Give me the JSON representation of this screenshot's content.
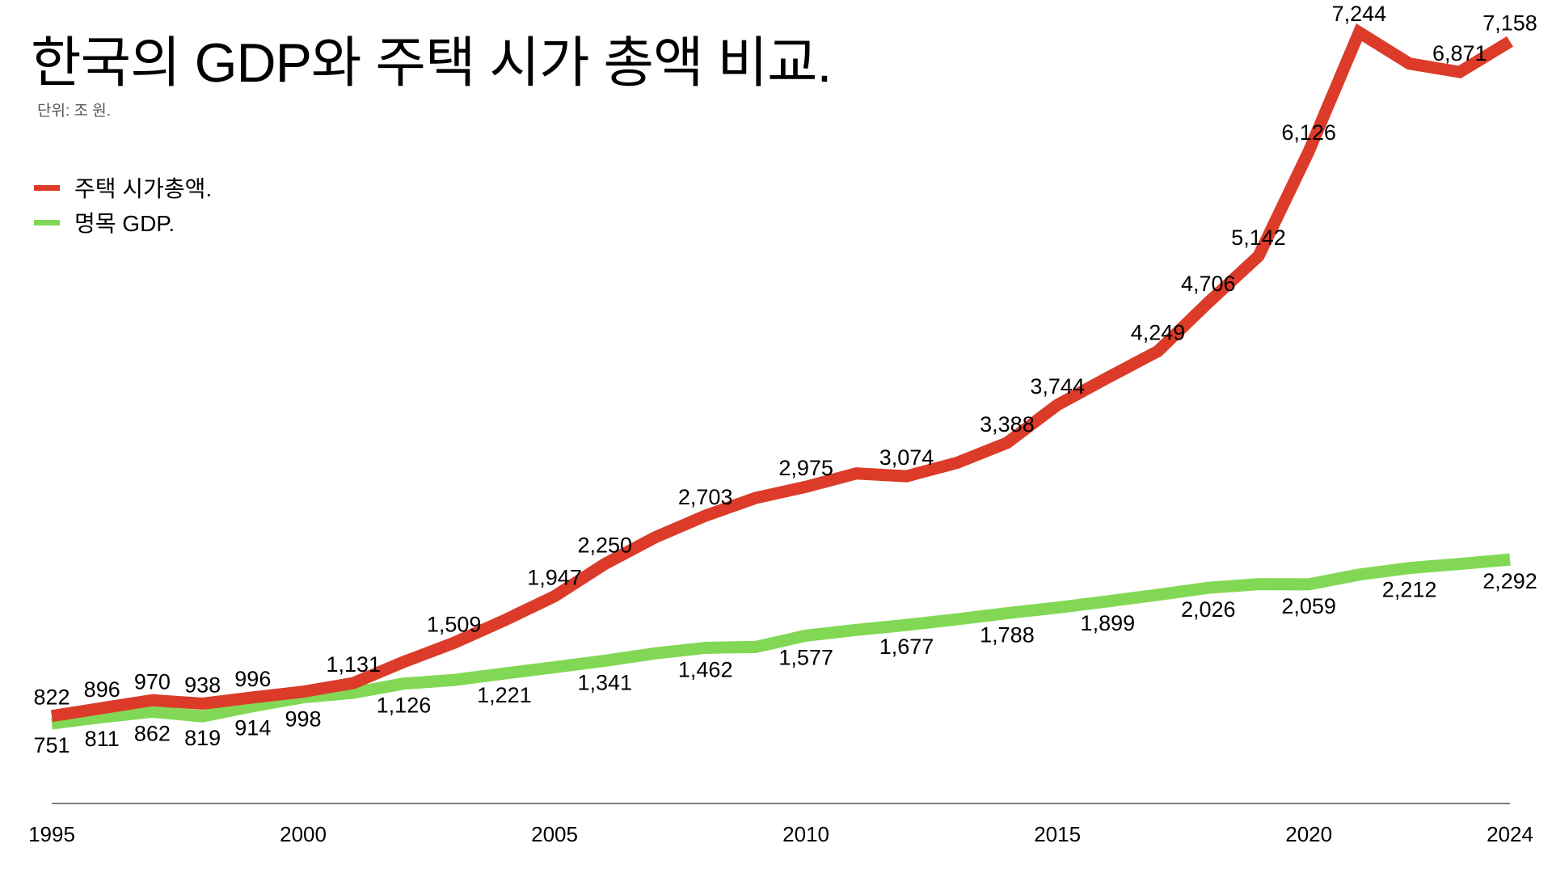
{
  "chart_data": {
    "type": "line",
    "title": "한국의 GDP와 주택 시가 총액 비교.",
    "subtitle": "단위: 조 원.",
    "xlabel": "",
    "ylabel": "",
    "x": [
      1995,
      1996,
      1997,
      1998,
      1999,
      2000,
      2001,
      2002,
      2003,
      2004,
      2005,
      2006,
      2007,
      2008,
      2009,
      2010,
      2011,
      2012,
      2013,
      2014,
      2015,
      2016,
      2017,
      2018,
      2019,
      2020,
      2021,
      2022,
      2023,
      2024
    ],
    "xticks": [
      "1995",
      "2000",
      "2005",
      "2010",
      "2015",
      "2020",
      "2024"
    ],
    "ylim": [
      0,
      7500
    ],
    "grid": false,
    "legend_position": "top-left",
    "series": [
      {
        "name": "주택 시가총액.",
        "color": "#db3b28",
        "values": [
          822,
          896,
          970,
          938,
          996,
          1050,
          1131,
          1330,
          1509,
          1720,
          1947,
          2250,
          2500,
          2703,
          2870,
          2975,
          3100,
          3074,
          3200,
          3388,
          3744,
          4000,
          4249,
          4706,
          5142,
          6126,
          7244,
          6950,
          6871,
          7158
        ],
        "labels": [
          "822",
          "896",
          "970",
          "938",
          "996",
          null,
          "1,131",
          null,
          "1,509",
          null,
          "1,947",
          "2,250",
          null,
          "2,703",
          null,
          "2,975",
          null,
          "3,074",
          null,
          "3,388",
          "3,744",
          null,
          "4,249",
          "4,706",
          "5,142",
          "6,126",
          "7,244",
          null,
          "6,871",
          "7,158"
        ]
      },
      {
        "name": "명목 GDP.",
        "color": "#82d855",
        "values": [
          751,
          811,
          862,
          819,
          914,
          998,
          1040,
          1126,
          1160,
          1221,
          1280,
          1341,
          1410,
          1462,
          1470,
          1577,
          1630,
          1677,
          1730,
          1788,
          1840,
          1899,
          1960,
          2026,
          2060,
          2059,
          2150,
          2212,
          2250,
          2292
        ],
        "labels": [
          "751",
          "811",
          "862",
          "819",
          "914",
          "998",
          null,
          "1,126",
          null,
          "1,221",
          null,
          "1,341",
          null,
          "1,462",
          null,
          "1,577",
          null,
          "1,677",
          null,
          "1,788",
          null,
          "1,899",
          null,
          "2,026",
          null,
          "2,059",
          null,
          "2,212",
          null,
          "2,292"
        ]
      }
    ]
  }
}
